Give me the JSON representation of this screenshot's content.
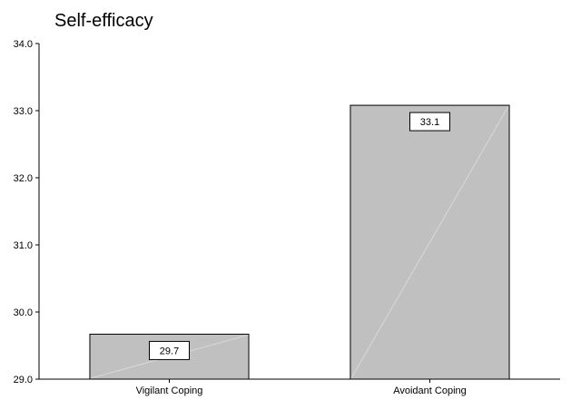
{
  "chart_data": {
    "type": "bar",
    "title": "Self-efficacy",
    "xlabel": "",
    "ylabel": "",
    "categories": [
      "Vigilant Coping",
      "Avoidant Coping"
    ],
    "values": [
      29.67,
      33.08
    ],
    "data_labels": [
      "29.7",
      "33.1"
    ],
    "ylim": [
      29.0,
      34.0
    ],
    "yticks": [
      "29.0",
      "30.0",
      "31.0",
      "32.0",
      "33.0",
      "34.0"
    ],
    "grid": false,
    "legend": "none",
    "colors": {
      "bar": "#c0c0c0",
      "edge": "#000000",
      "accent_line": "#d8d8d8"
    }
  }
}
